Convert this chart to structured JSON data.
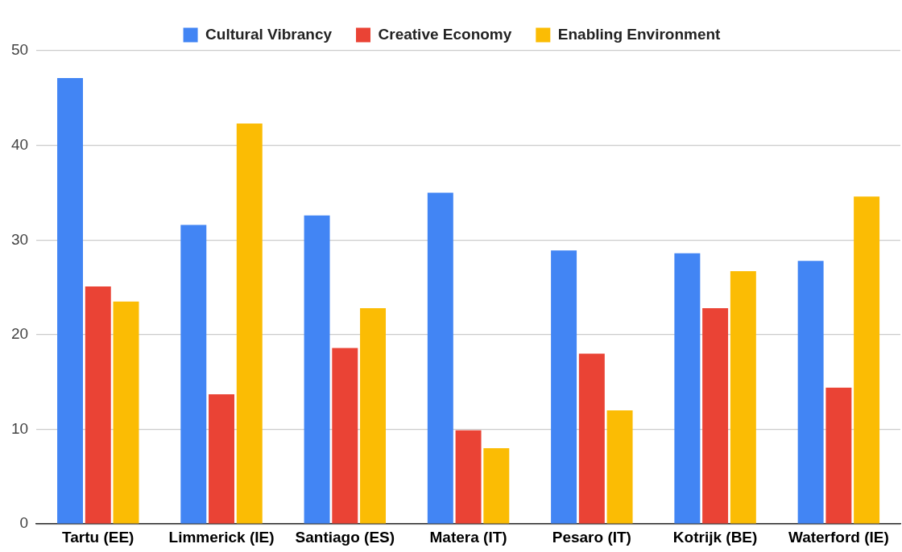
{
  "chart_data": {
    "type": "bar",
    "categories": [
      "Tartu (EE)",
      "Limmerick (IE)",
      "Santiago (ES)",
      "Matera (IT)",
      "Pesaro (IT)",
      "Kotrijk (BE)",
      "Waterford (IE)"
    ],
    "series": [
      {
        "name": "Cultural Vibrancy",
        "color": "#4285f4",
        "values": [
          47.1,
          31.6,
          32.6,
          35.0,
          28.9,
          28.6,
          27.8
        ]
      },
      {
        "name": "Creative Economy",
        "color": "#ea4335",
        "values": [
          25.1,
          13.7,
          18.6,
          9.9,
          18.0,
          22.8,
          14.4
        ]
      },
      {
        "name": "Enabling Environment",
        "color": "#fbbc04",
        "values": [
          23.5,
          42.3,
          22.8,
          8.0,
          12.0,
          26.7,
          34.6
        ]
      }
    ],
    "ylim": [
      0,
      50
    ],
    "yticks": [
      0,
      10,
      20,
      30,
      40,
      50
    ],
    "grid": "y",
    "legend": "top"
  }
}
